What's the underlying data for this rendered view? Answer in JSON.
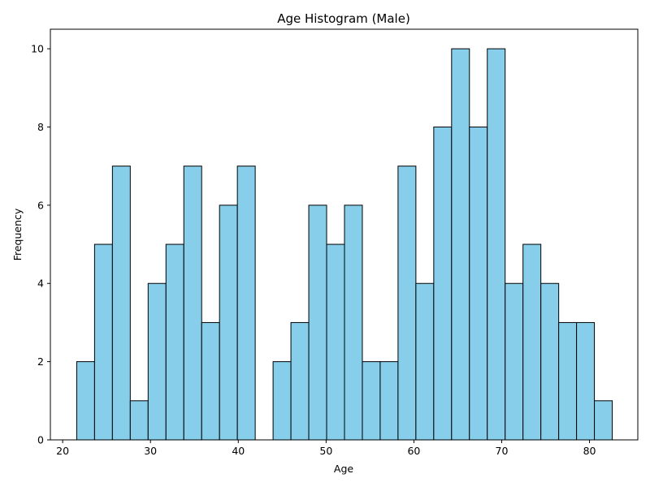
{
  "chart_data": {
    "type": "bar",
    "title": "Age Histogram (Male)",
    "xlabel": "Age",
    "ylabel": "Frequency",
    "bin_start": 21.6,
    "bin_width": 2.033,
    "values": [
      2,
      5,
      7,
      1,
      4,
      5,
      7,
      3,
      6,
      7,
      0,
      2,
      3,
      6,
      5,
      6,
      2,
      2,
      7,
      4,
      8,
      10,
      8,
      10,
      4,
      5,
      4,
      3,
      3,
      1
    ],
    "xlim": [
      18.6,
      85.5
    ],
    "ylim": [
      0,
      10.5
    ],
    "xticks": [
      20,
      30,
      40,
      50,
      60,
      70,
      80
    ],
    "yticks": [
      0,
      2,
      4,
      6,
      8,
      10
    ],
    "grid": false,
    "colors": {
      "bar_fill": "#87ceeb",
      "bar_edge": "#000000",
      "axis": "#000000"
    }
  }
}
